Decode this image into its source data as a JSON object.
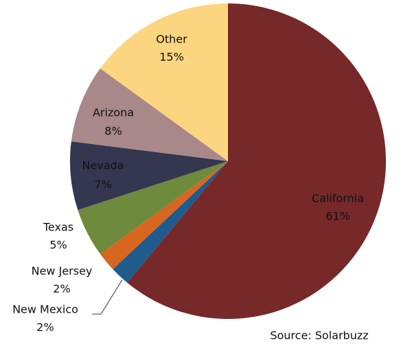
{
  "chart_data": {
    "type": "pie",
    "categories": [
      "California",
      "New Mexico",
      "New Jersey",
      "Texas",
      "Nevada",
      "Arizona",
      "Other"
    ],
    "values": [
      61,
      2,
      2,
      5,
      7,
      8,
      15
    ],
    "value_labels": [
      "61%",
      "2%",
      "2%",
      "5%",
      "7%",
      "8%",
      "15%"
    ],
    "colors": [
      "#772828",
      "#1f5b8c",
      "#d8661f",
      "#6e8a3c",
      "#353650",
      "#a88888",
      "#fcd581"
    ],
    "annotation": "Source: Solarbuzz"
  }
}
